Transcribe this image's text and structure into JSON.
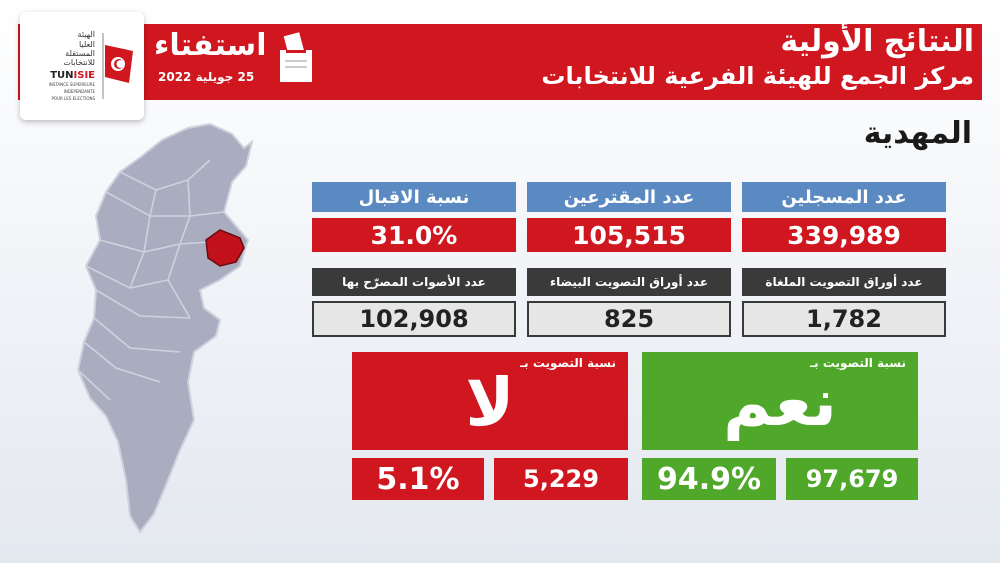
{
  "logo": {
    "arabic_lines": [
      "الهيئة",
      "العليا",
      "المستقلة",
      "للانتخابات"
    ],
    "abbr_prefix": "TUN",
    "abbr_suffix": "ISIE",
    "french_lines": [
      "INSTANCE SUPERIEURE",
      "INDEPENDANTE",
      "POUR LES ELECTIONS"
    ]
  },
  "referendum": {
    "word": "استفتاء",
    "date": "25 جويلية 2022"
  },
  "header": {
    "title": "النتائج الأولية",
    "subtitle": "مركز الجمع للهيئة الفرعية للانتخابات"
  },
  "region": "المهدية",
  "stats": {
    "registered_label": "عدد المسجلين",
    "registered_value": "339,989",
    "voters_label": "عدد المقترعين",
    "voters_value": "105,515",
    "turnout_label": "نسبة الاقبال",
    "turnout_value": "31.0%",
    "cancelled_label": "عدد أوراق التصويت الملغاة",
    "cancelled_value": "1,782",
    "blank_label": "عدد أوراق التصويت البيضاء",
    "blank_value": "825",
    "valid_label": "عدد الأصوات المصرّح بها",
    "valid_value": "102,908"
  },
  "vote_no": {
    "caption": "نسبة التصويت بـ",
    "word": "لا",
    "percent": "5.1%",
    "count": "5,229"
  },
  "vote_yes": {
    "caption": "نسبة التصويت بـ",
    "word": "نعم",
    "percent": "94.9%",
    "count": "97,679"
  },
  "colors": {
    "red": "#d0161f",
    "blue": "#5b89c2",
    "dark": "#3a3a3a",
    "green": "#4fa829",
    "map_gray": "#a9adbf",
    "map_highlight": "#c1121c"
  }
}
